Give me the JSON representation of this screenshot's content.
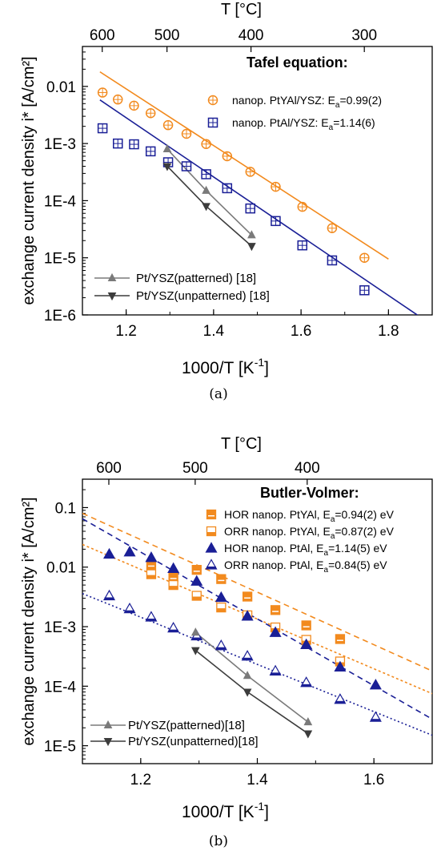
{
  "colors": {
    "orange": "#F28A1E",
    "blue": "#1A1F96",
    "gray": "#7A7A7A",
    "dark_gray": "#3C3C3C"
  },
  "chart_data": [
    {
      "panel": "(a)",
      "caption": "(a)",
      "type": "scatter",
      "y_scale": "log",
      "xlim": [
        1.1,
        1.9
      ],
      "ylim": [
        1e-06,
        0.05
      ],
      "top_xlim_reference": "1000/T",
      "xlabel_prefix": "1000/T [K",
      "xlabel_exp": "-1",
      "xlabel_suffix": "]",
      "ylabel": "exchange current density i* [A/cm²]",
      "top_xlabel": "T [°C]",
      "annotation": "Tafel equation:",
      "x_ticks": [
        {
          "v": 1.2,
          "label": "1.2"
        },
        {
          "v": 1.4,
          "label": "1.4"
        },
        {
          "v": 1.6,
          "label": "1.6"
        },
        {
          "v": 1.8,
          "label": "1.8"
        }
      ],
      "y_ticks": [
        {
          "v": 1e-06,
          "label": "1E-6"
        },
        {
          "v": 1e-05,
          "label": "1E-5"
        },
        {
          "v": 0.0001,
          "label": "1E-4"
        },
        {
          "v": 0.001,
          "label": "1E-3"
        },
        {
          "v": 0.01,
          "label": "0.01"
        }
      ],
      "top_ticks": [
        {
          "c": 600,
          "label": "600"
        },
        {
          "c": 500,
          "label": "500"
        },
        {
          "c": 400,
          "label": "400"
        },
        {
          "c": 300,
          "label": "300"
        }
      ],
      "series": [
        {
          "name": "nanop. PtYAl/YSZ: E",
          "ea": "a",
          "ea_value": "=0.99(2)",
          "color": "orange",
          "marker": "circle-cross",
          "legend": "upper",
          "x": [
            1.146,
            1.181,
            1.218,
            1.256,
            1.296,
            1.338,
            1.383,
            1.431,
            1.484,
            1.542,
            1.603,
            1.671,
            1.745
          ],
          "y": [
            0.0078,
            0.0059,
            0.0046,
            0.0034,
            0.0021,
            0.00148,
            0.00098,
            0.0006,
            0.00032,
            0.000175,
            7.8e-05,
            3.3e-05,
            1e-05
          ],
          "fit": {
            "x": [
              1.14,
              1.8
            ],
            "y": [
              0.018,
              9.5e-06
            ]
          }
        },
        {
          "name": "nanop. PtAl/YSZ: E",
          "ea": "a",
          "ea_value": "=1.14(6)",
          "color": "blue",
          "marker": "square-cross",
          "legend": "upper",
          "x": [
            1.146,
            1.181,
            1.218,
            1.256,
            1.296,
            1.338,
            1.383,
            1.431,
            1.484,
            1.542,
            1.603,
            1.671,
            1.745
          ],
          "y": [
            0.00185,
            0.001,
            0.00097,
            0.00073,
            0.00047,
            0.0004,
            0.00029,
            0.000165,
            7.3e-05,
            4.4e-05,
            1.65e-05,
            9e-06,
            2.7e-06
          ],
          "fit": {
            "x": [
              1.14,
              1.87
            ],
            "y": [
              0.0058,
              9.5e-07
            ]
          }
        },
        {
          "name": "Pt/YSZ(patterned) [18]",
          "color": "gray",
          "marker": "triangle-up",
          "legend": "lower",
          "x": [
            1.294,
            1.383,
            1.487
          ],
          "y": [
            0.0008,
            0.00015,
            2.5e-05
          ]
        },
        {
          "name": "Pt/YSZ(unpatterned) [18]",
          "color": "dark_gray",
          "marker": "triangle-down",
          "legend": "lower",
          "x": [
            1.294,
            1.383,
            1.487
          ],
          "y": [
            0.0004,
            8e-05,
            1.6e-05
          ]
        }
      ]
    },
    {
      "panel": "(b)",
      "caption": "(b)",
      "type": "scatter",
      "y_scale": "log",
      "xlim": [
        1.1,
        1.7
      ],
      "ylim": [
        5e-06,
        0.3
      ],
      "xlabel_prefix": "1000/T [K",
      "xlabel_exp": "-1",
      "xlabel_suffix": "]",
      "ylabel": "exchange current density i* [A/cm²]",
      "top_xlabel": "T [°C]",
      "annotation": "Butler-Volmer:",
      "x_ticks": [
        {
          "v": 1.2,
          "label": "1.2"
        },
        {
          "v": 1.4,
          "label": "1.4"
        },
        {
          "v": 1.6,
          "label": "1.6"
        }
      ],
      "y_ticks": [
        {
          "v": 1e-05,
          "label": "1E-5"
        },
        {
          "v": 0.0001,
          "label": "1E-4"
        },
        {
          "v": 0.001,
          "label": "1E-3"
        },
        {
          "v": 0.01,
          "label": "0.01"
        },
        {
          "v": 0.1,
          "label": "0.1"
        }
      ],
      "top_ticks": [
        {
          "c": 600,
          "label": "600"
        },
        {
          "c": 500,
          "label": "500"
        },
        {
          "c": 400,
          "label": "400"
        }
      ],
      "series": [
        {
          "name": "HOR nanop. PtYAl, E",
          "ea": "a",
          "ea_value": "=0.94(2) eV",
          "color": "orange",
          "marker": "square-half",
          "legend": "upper",
          "x": [
            1.218,
            1.256,
            1.296,
            1.338,
            1.383,
            1.431,
            1.484,
            1.542
          ],
          "y": [
            0.011,
            0.0068,
            0.009,
            0.0063,
            0.0032,
            0.0019,
            0.00105,
            0.00062
          ],
          "fit": {
            "x": [
              1.1,
              1.7
            ],
            "y": [
              0.08,
              0.00018
            ],
            "dash": "7 5"
          }
        },
        {
          "name": "ORR nanop. PtYAl, E",
          "ea": "a",
          "ea_value": "=0.87(2) eV",
          "color": "orange",
          "marker": "square-half-open",
          "legend": "upper",
          "x": [
            1.218,
            1.256,
            1.296,
            1.338,
            1.383,
            1.431,
            1.484,
            1.542
          ],
          "y": [
            0.0076,
            0.005,
            0.0033,
            0.0021,
            0.00155,
            0.00097,
            0.0006,
            0.00026
          ],
          "fit": {
            "x": [
              1.1,
              1.7
            ],
            "y": [
              0.024,
              7.5e-05
            ],
            "dash": "3 3"
          }
        },
        {
          "name": "HOR nanop. PtAl, E",
          "ea": "a",
          "ea_value": "=1.14(5) eV",
          "color": "blue",
          "marker": "triangle-filled",
          "legend": "upper",
          "x": [
            1.146,
            1.181,
            1.218,
            1.256,
            1.296,
            1.338,
            1.383,
            1.431,
            1.484,
            1.542,
            1.603
          ],
          "y": [
            0.0165,
            0.018,
            0.0145,
            0.0095,
            0.0058,
            0.0031,
            0.0015,
            0.0008,
            0.0005,
            0.00021,
            0.000105
          ],
          "fit": {
            "x": [
              1.1,
              1.7
            ],
            "y": [
              0.065,
              2.8e-05
            ],
            "dash": "7 5"
          }
        },
        {
          "name": "ORR nanop. PtAl, E",
          "ea": "a",
          "ea_value": "=0.84(5) eV",
          "color": "blue",
          "marker": "triangle-half",
          "legend": "upper",
          "x": [
            1.146,
            1.181,
            1.218,
            1.256,
            1.296,
            1.338,
            1.383,
            1.431,
            1.484,
            1.542,
            1.603
          ],
          "y": [
            0.0033,
            0.002,
            0.00145,
            0.00095,
            0.0007,
            0.00048,
            0.00032,
            0.00018,
            0.000115,
            6e-05,
            3e-05
          ],
          "fit": {
            "x": [
              1.1,
              1.7
            ],
            "y": [
              0.0036,
              1.5e-05
            ],
            "dash": "2 3"
          }
        },
        {
          "name": "Pt/YSZ(patterned)[18]",
          "color": "gray",
          "marker": "triangle-up",
          "legend": "lower",
          "x": [
            1.294,
            1.383,
            1.487
          ],
          "y": [
            0.0008,
            0.00015,
            2.5e-05
          ]
        },
        {
          "name": "Pt/YSZ(unpatterned)[18]",
          "color": "dark_gray",
          "marker": "triangle-down",
          "legend": "lower",
          "x": [
            1.294,
            1.383,
            1.487
          ],
          "y": [
            0.0004,
            8e-05,
            1.6e-05
          ]
        }
      ]
    }
  ]
}
